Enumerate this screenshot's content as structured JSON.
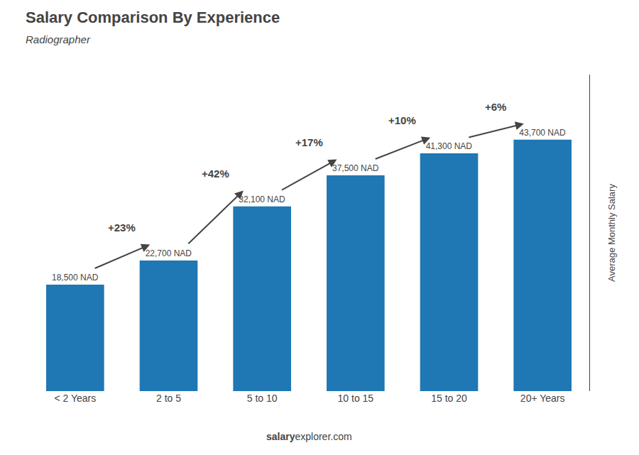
{
  "chart_data": {
    "type": "bar",
    "title": "Salary Comparison By Experience",
    "subtitle": "Radiographer",
    "ylabel": "Average Monthly Salary",
    "categories": [
      "< 2 Years",
      "2 to 5",
      "5 to 10",
      "10 to 15",
      "15 to 20",
      "20+ Years"
    ],
    "values": [
      18500,
      22700,
      32100,
      37500,
      41300,
      43700
    ],
    "value_labels": [
      "18,500 NAD",
      "22,700 NAD",
      "32,100 NAD",
      "37,500 NAD",
      "41,300 NAD",
      "43,700 NAD"
    ],
    "data_labels": true,
    "annotations": [
      {
        "text": "+23%",
        "from": "< 2 Years",
        "to": "2 to 5"
      },
      {
        "text": "+42%",
        "from": "2 to 5",
        "to": "5 to 10"
      },
      {
        "text": "+17%",
        "from": "5 to 10",
        "to": "10 to 15"
      },
      {
        "text": "+10%",
        "from": "10 to 15",
        "to": "15 to 20"
      },
      {
        "text": "+6%",
        "from": "15 to 20",
        "to": "20+ Years"
      }
    ],
    "footer": [
      "salary",
      "explorer.com"
    ],
    "ylim": [
      0,
      55000
    ],
    "tick_labels": "x",
    "grid": false
  }
}
